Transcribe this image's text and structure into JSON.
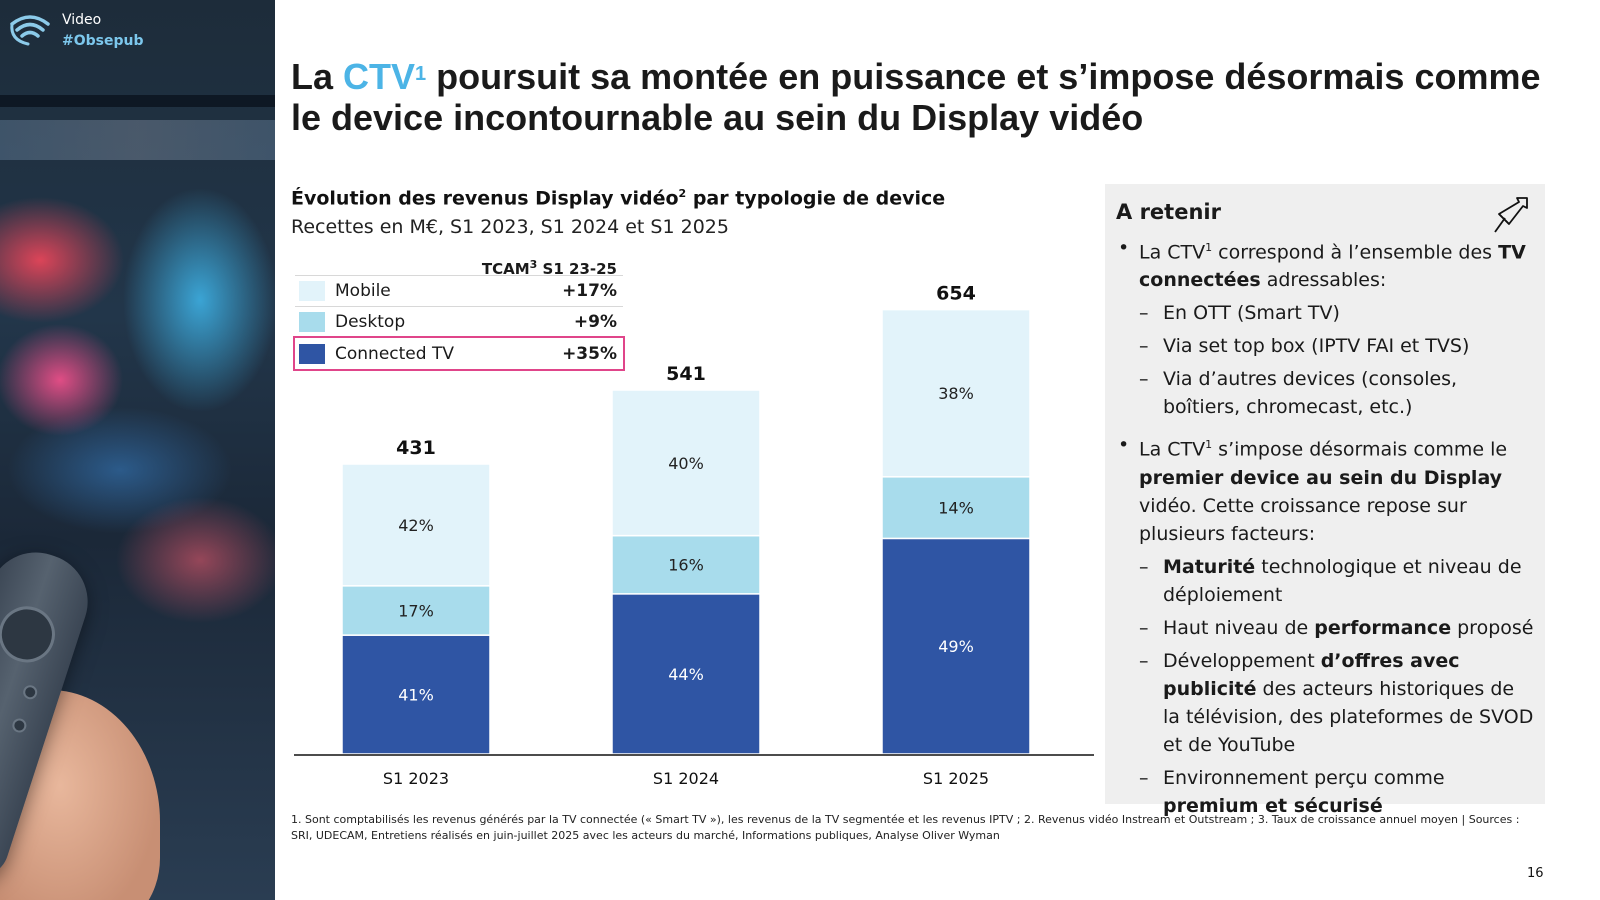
{
  "brand": {
    "section": "Video",
    "tag": "#Obsepub"
  },
  "title": {
    "prefix": "La ",
    "highlight": "CTV",
    "sup": "1",
    "rest": " poursuit sa montée en puissance et s’impose désormais comme le device incontournable au sein du Display vidéo"
  },
  "chart_header": {
    "title_before": "Évolution des revenus Display vidéo",
    "title_sup": "2",
    "title_after": " par typologie de device",
    "subtitle": "Recettes en M€, S1 2023, S1 2024 et S1 2025"
  },
  "legend": {
    "header_label": "TCAM",
    "header_sup": "3",
    "header_suffix": " S1 23-25",
    "items": [
      {
        "label": "Mobile",
        "value": "+17%",
        "color": "#e2f3fa"
      },
      {
        "label": "Desktop",
        "value": "+9%",
        "color": "#a8dcec"
      },
      {
        "label": "Connected TV",
        "value": "+35%",
        "color": "#2f55a4"
      }
    ]
  },
  "chart_data": {
    "type": "bar",
    "stacked": true,
    "categories": [
      "S1 2023",
      "S1 2024",
      "S1 2025"
    ],
    "totals": [
      431,
      541,
      654
    ],
    "series": [
      {
        "name": "Connected TV",
        "shares": [
          41,
          44,
          49
        ],
        "labels": [
          "41%",
          "44%",
          "49%"
        ],
        "color": "#2f55a4"
      },
      {
        "name": "Desktop",
        "shares": [
          17,
          16,
          14
        ],
        "labels": [
          "17%",
          "16%",
          "14%"
        ],
        "color": "#a8dcec"
      },
      {
        "name": "Mobile",
        "shares": [
          42,
          40,
          38
        ],
        "labels": [
          "42%",
          "40%",
          "38%"
        ],
        "color": "#e2f3fa"
      }
    ],
    "title": "Évolution des revenus Display vidéo par typologie de device",
    "ylabel": "Recettes en M€",
    "ylim": [
      0,
      654
    ]
  },
  "retain": {
    "title": "A retenir",
    "b1": {
      "t1": "La CTV",
      "sup": "1",
      "t2": " correspond à l’ensemble des ",
      "bold": "TV connectées",
      "t3": " adressables:"
    },
    "b1_subs": [
      "En OTT (Smart TV)",
      "Via set top box (IPTV FAI et TVS)",
      "Via d’autres devices (consoles, boîtiers, chromecast, etc.)"
    ],
    "b2": {
      "t1": "La CTV",
      "sup": "1",
      "t2": " s’impose désormais comme le ",
      "bold": "premier device au sein du Display",
      "t3": " vidéo. Cette croissance repose sur plusieurs facteurs:"
    },
    "s1": {
      "bold": "Maturité",
      "rest": " technologique et niveau de déploiement"
    },
    "s2": {
      "pre": "Haut niveau de ",
      "bold": "performance",
      "post": " proposé"
    },
    "s3": {
      "pre": "Développement ",
      "bold": "d’offres avec publicité",
      "post": " des acteurs historiques de la télévision, des plateformes de SVOD et de YouTube"
    },
    "s4": {
      "pre": "Environnement perçu comme ",
      "bold": "premium et sécurisé"
    }
  },
  "footnote": "1. Sont comptabilisés les revenus générés par la TV connectée (« Smart TV »), les revenus de la TV segmentée et les  revenus IPTV ; 2. Revenus vidéo Instream et Outstream ; 3. Taux de croissance annuel moyen | Sources : SRI, UDECAM, Entretiens réalisés en juin-juillet 2025 avec les acteurs du marché, Informations publiques, Analyse Oliver Wyman",
  "page_number": "16"
}
